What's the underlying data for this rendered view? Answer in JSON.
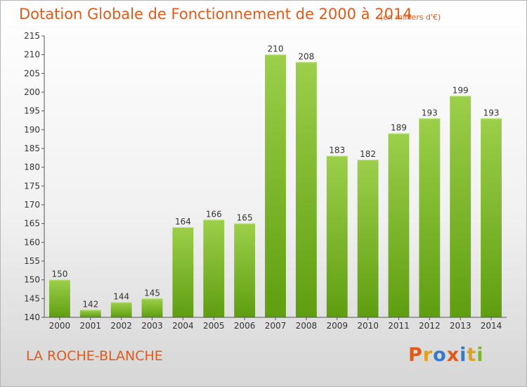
{
  "header": {
    "title": "Dotation Globale de Fonctionnement de 2000 à 2014",
    "subtitle": "(en milliers d'€)"
  },
  "footer": {
    "place": "LA ROCHE-BLANCHE",
    "logo": "Proxiti"
  },
  "colors": {
    "title": "#e05a1a",
    "bar_top": "#9ccf4a",
    "bar_bottom": "#5f9e10",
    "logo": [
      "#e05a1a",
      "#e0a020",
      "#3a78c8",
      "#e05a1a",
      "#3a78c8",
      "#e0a020",
      "#7ab830"
    ]
  },
  "chart_data": {
    "type": "bar",
    "title": "Dotation Globale de Fonctionnement de 2000 à 2014",
    "subtitle": "(en milliers d'€)",
    "categories": [
      "2000",
      "2001",
      "2002",
      "2003",
      "2004",
      "2005",
      "2006",
      "2007",
      "2008",
      "2009",
      "2010",
      "2011",
      "2012",
      "2013",
      "2014"
    ],
    "values": [
      150,
      142,
      144,
      145,
      164,
      166,
      165,
      210,
      208,
      183,
      182,
      189,
      193,
      199,
      193
    ],
    "ylim": [
      140,
      215
    ],
    "yticks": [
      140,
      145,
      150,
      155,
      160,
      165,
      170,
      175,
      180,
      185,
      190,
      195,
      200,
      205,
      210,
      215
    ],
    "grid": false,
    "legend": "none"
  }
}
